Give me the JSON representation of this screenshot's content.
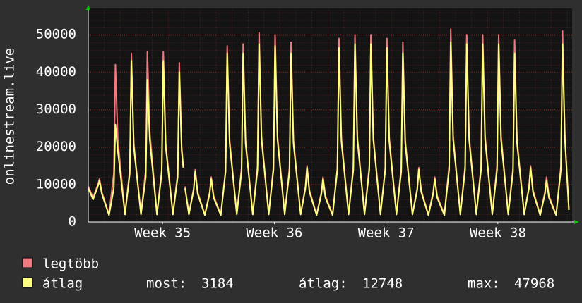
{
  "chart_data": {
    "type": "line",
    "y_label": "onlinestream.live",
    "xlim": [
      0,
      30.3
    ],
    "xticks": [
      {
        "value": 4.65,
        "label": "Week 35"
      },
      {
        "value": 11.65,
        "label": "Week 36"
      },
      {
        "value": 18.65,
        "label": "Week 37"
      },
      {
        "value": 25.65,
        "label": "Week 38"
      }
    ],
    "ylim": [
      0,
      57000
    ],
    "yticks": [
      0,
      10000,
      20000,
      30000,
      40000,
      50000
    ],
    "grid": true,
    "x": [
      0,
      0.3,
      0.6,
      0.7,
      0.85,
      1.3,
      1.6,
      1.7,
      1.85,
      2.3,
      2.6,
      2.7,
      2.85,
      3.3,
      3.6,
      3.7,
      3.85,
      4.3,
      4.6,
      4.7,
      4.85,
      5.3,
      5.6,
      5.7,
      5.85,
      5.95,
      6.0,
      6.06,
      6.3,
      6.6,
      6.7,
      6.85,
      7.3,
      7.6,
      7.7,
      7.85,
      8.3,
      8.6,
      8.7,
      8.85,
      9.3,
      9.6,
      9.7,
      9.85,
      10.3,
      10.6,
      10.7,
      10.85,
      11.3,
      11.6,
      11.7,
      11.85,
      12.3,
      12.6,
      12.7,
      12.85,
      13.3,
      13.6,
      13.7,
      13.85,
      14.3,
      14.6,
      14.7,
      14.85,
      15.3,
      15.6,
      15.7,
      15.85,
      16.3,
      16.6,
      16.7,
      16.85,
      17.3,
      17.6,
      17.7,
      17.85,
      18.3,
      18.6,
      18.7,
      18.85,
      19.3,
      19.6,
      19.7,
      19.85,
      20.3,
      20.6,
      20.7,
      20.85,
      21.3,
      21.6,
      21.7,
      21.85,
      22.3,
      22.6,
      22.7,
      22.85,
      23.3,
      23.6,
      23.7,
      23.85,
      24.3,
      24.6,
      24.7,
      24.85,
      25.3,
      25.6,
      25.7,
      25.85,
      26.3,
      26.6,
      26.7,
      26.85,
      27.3,
      27.6,
      27.7,
      27.85,
      28.3,
      28.6,
      28.7,
      28.85,
      29.3,
      29.6,
      29.7,
      29.85,
      30.1
    ],
    "series": [
      {
        "name": "legtöbb",
        "color": "#f07a80",
        "values": [
          9500,
          6500,
          10000,
          11500,
          8000,
          2000,
          13000,
          42000,
          22000,
          2200,
          14000,
          45000,
          21000,
          2200,
          14000,
          45500,
          24000,
          2200,
          14000,
          45500,
          21000,
          2200,
          13000,
          42500,
          20000,
          15000,
          null,
          9500,
          2200,
          9000,
          14000,
          8000,
          2000,
          8000,
          12000,
          7000,
          2000,
          14000,
          47000,
          22000,
          2200,
          14500,
          47500,
          22000,
          2200,
          15000,
          50500,
          23000,
          2200,
          15000,
          50000,
          23000,
          2200,
          14500,
          48000,
          22000,
          2200,
          9500,
          15000,
          8500,
          2000,
          8000,
          12000,
          7000,
          2000,
          14500,
          49000,
          22500,
          2200,
          15000,
          50000,
          23000,
          2200,
          15000,
          50000,
          23000,
          2200,
          14500,
          49000,
          22500,
          2200,
          14500,
          48000,
          22000,
          2200,
          9000,
          14500,
          8500,
          2000,
          8000,
          12000,
          7000,
          2000,
          15000,
          51500,
          23000,
          2200,
          15000,
          50000,
          23000,
          2200,
          15000,
          50000,
          23000,
          2200,
          15000,
          50000,
          23000,
          2200,
          14500,
          48500,
          22000,
          2200,
          9500,
          15000,
          8500,
          2000,
          8000,
          12000,
          7000,
          2000,
          15000,
          51000,
          23000,
          3300
        ]
      },
      {
        "name": "átlag",
        "color": "#ffff80",
        "values": [
          9000,
          6000,
          9500,
          11000,
          7500,
          1800,
          9000,
          26000,
          19000,
          2000,
          13000,
          43000,
          20000,
          2000,
          12000,
          38000,
          22000,
          2000,
          13000,
          43000,
          20000,
          2000,
          12000,
          40000,
          19000,
          14500,
          null,
          9000,
          2000,
          8500,
          13500,
          7500,
          1800,
          7500,
          11500,
          6500,
          1800,
          13500,
          45000,
          21000,
          2000,
          13500,
          45000,
          21000,
          2000,
          14000,
          47500,
          22000,
          2000,
          14000,
          47000,
          22000,
          2000,
          13500,
          45000,
          21000,
          2000,
          9000,
          14500,
          8000,
          1800,
          7500,
          11500,
          6500,
          1800,
          14000,
          46500,
          21500,
          2000,
          14000,
          47500,
          22000,
          2000,
          14000,
          47500,
          22000,
          2000,
          14000,
          46500,
          21500,
          2000,
          13500,
          45000,
          21000,
          2000,
          8500,
          14000,
          8000,
          1800,
          7500,
          11500,
          6500,
          1800,
          14000,
          47968,
          22000,
          2000,
          14000,
          47500,
          22000,
          2000,
          14000,
          47500,
          22000,
          2000,
          14000,
          47500,
          22000,
          2000,
          13500,
          45000,
          21000,
          2000,
          9000,
          14500,
          8000,
          1800,
          7500,
          11000,
          6500,
          1800,
          14000,
          47500,
          22000,
          3184
        ]
      }
    ],
    "stats": [
      {
        "label": "most:",
        "value": 3184
      },
      {
        "label": "átlag:",
        "value": 12748
      },
      {
        "label": "max:",
        "value": 47968
      }
    ]
  }
}
